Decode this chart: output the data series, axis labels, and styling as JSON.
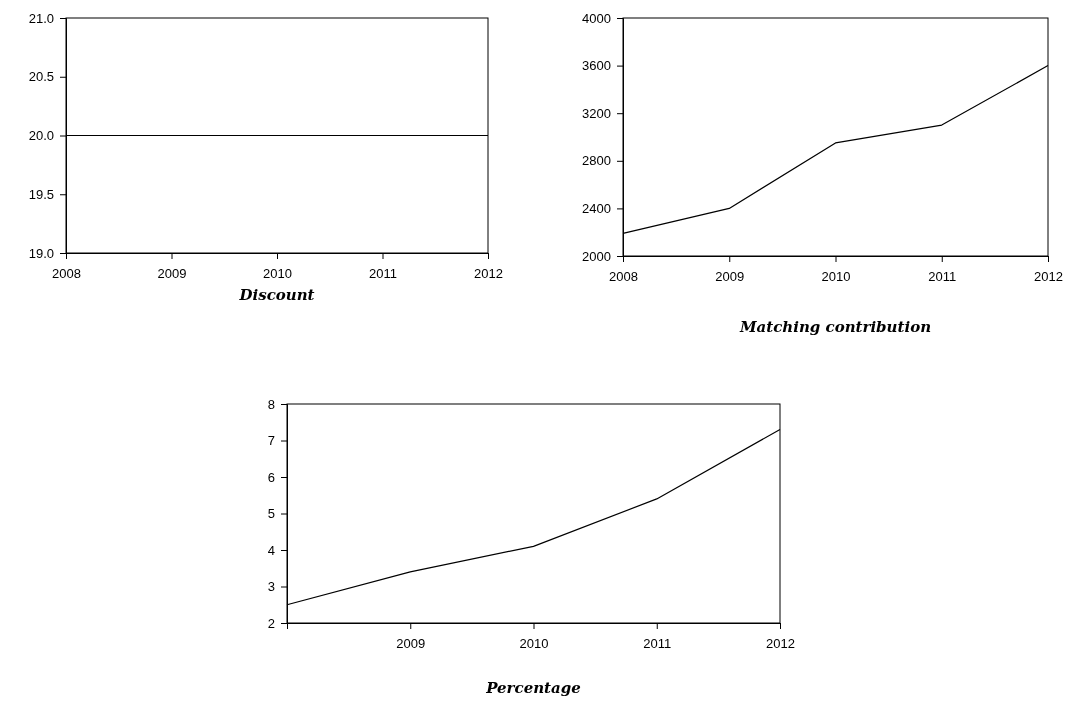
{
  "chart_data": [
    {
      "type": "line",
      "title": "Discount",
      "x": [
        2008,
        2009,
        2010,
        2011,
        2012
      ],
      "xlim": [
        2008,
        2012
      ],
      "xticks": [
        2008,
        2009,
        2010,
        2011,
        2012
      ],
      "ylim": [
        19,
        21
      ],
      "yticks": [
        {
          "value": 19,
          "label": "19.0"
        },
        {
          "value": 19.5,
          "label": "19.5"
        },
        {
          "value": 20,
          "label": "20.0"
        },
        {
          "value": 20.5,
          "label": "20.5"
        },
        {
          "value": 21,
          "label": "21.0"
        }
      ],
      "series": [
        {
          "color": "#000000",
          "values": [
            20,
            20,
            20,
            20,
            20
          ]
        }
      ],
      "marker": "none",
      "line_style": "solid",
      "grid": false
    },
    {
      "type": "line",
      "title": "Matching contribution",
      "x": [
        2008,
        2009,
        2010,
        2011,
        2012
      ],
      "xlim": [
        2008,
        2012
      ],
      "xticks": [
        2008,
        2009,
        2010,
        2011,
        2012
      ],
      "ylim": [
        2000,
        4000
      ],
      "yticks": [
        2000,
        2400,
        2800,
        3200,
        3600,
        4000
      ],
      "series": [
        {
          "color": "#000000",
          "values": [
            2190,
            2400,
            2950,
            3100,
            3600
          ]
        }
      ],
      "marker": "none",
      "line_style": "solid",
      "grid": false
    },
    {
      "type": "line",
      "title": "Percentage",
      "x": [
        2008,
        2009,
        2010,
        2011,
        2012
      ],
      "xlim": [
        2008,
        2012
      ],
      "xticks": [
        {
          "value": 2008,
          "label": null
        },
        2009,
        2010,
        2011,
        2012
      ],
      "ylim": [
        2,
        8
      ],
      "yticks": [
        2,
        3,
        4,
        5,
        6,
        7,
        8
      ],
      "series": [
        {
          "color": "#000000",
          "values": [
            2.5,
            3.4,
            4.1,
            5.4,
            7.3
          ]
        }
      ],
      "marker": "none",
      "line_style": "solid",
      "grid": false
    }
  ]
}
